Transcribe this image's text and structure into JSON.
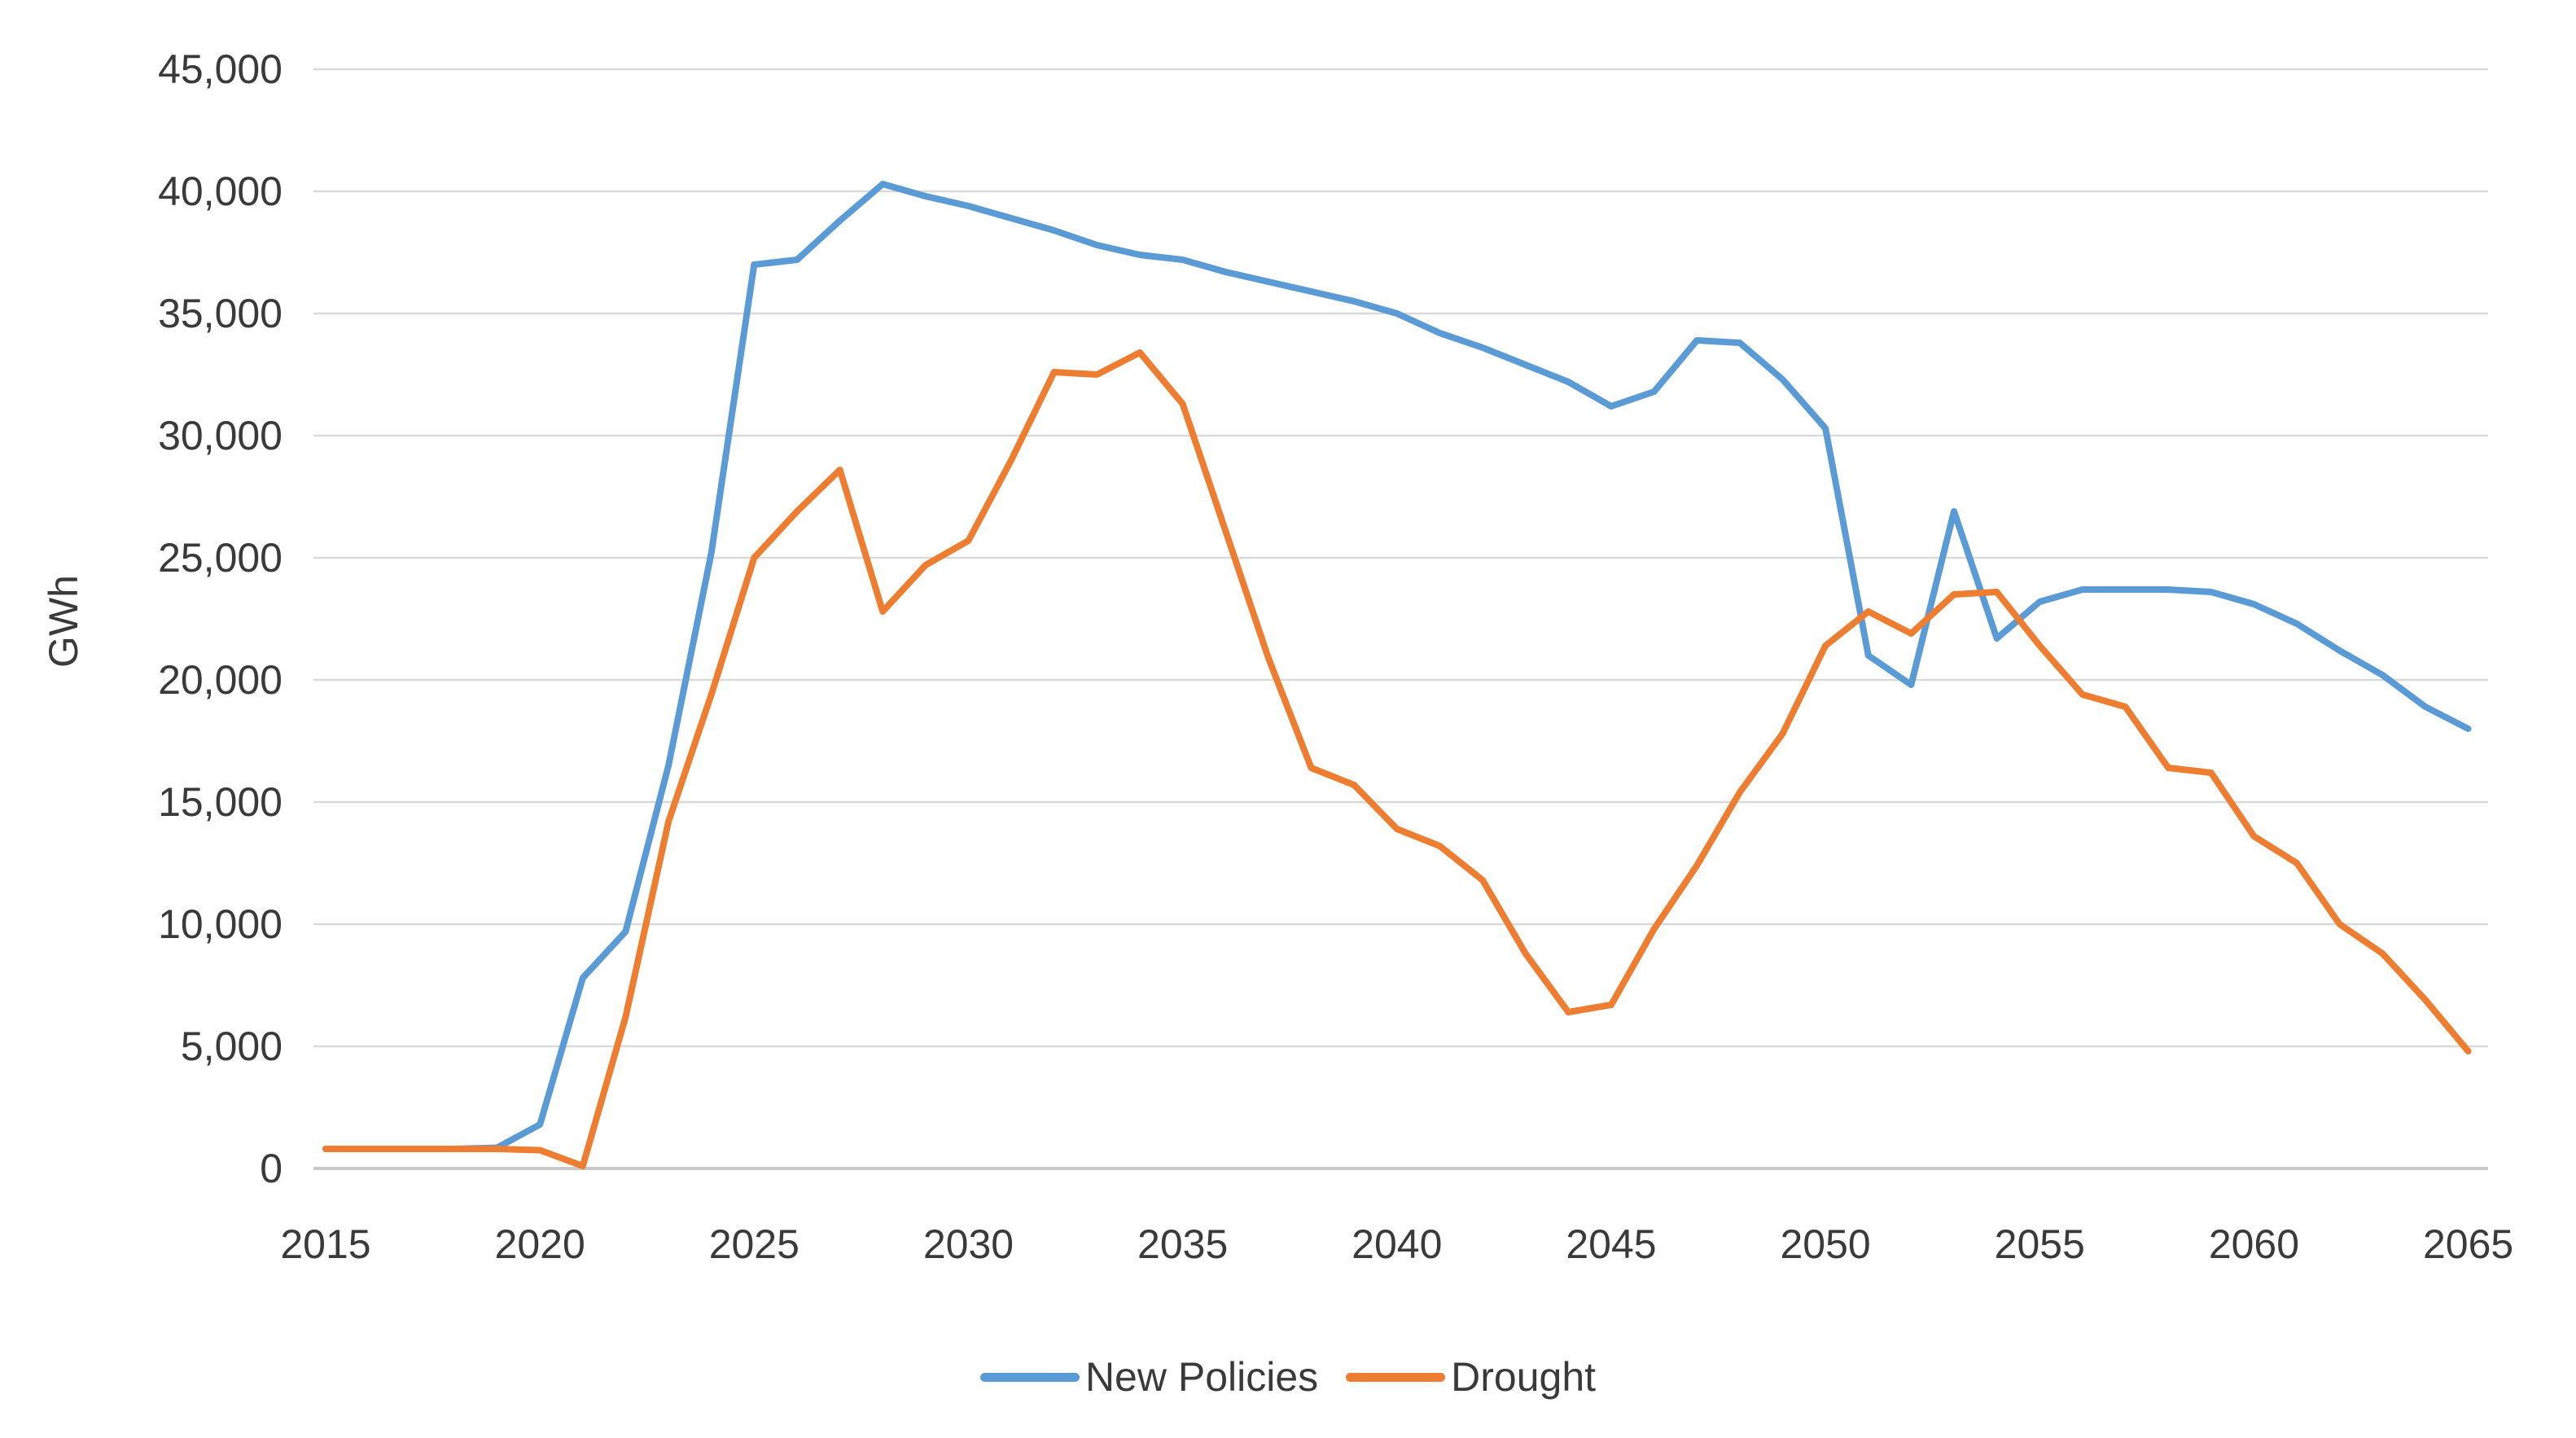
{
  "chart_data": {
    "type": "line",
    "title": "",
    "xlabel": "",
    "ylabel": "GWh",
    "grid": true,
    "legend_position": "bottom",
    "ylim": [
      0,
      45000
    ],
    "x": [
      2015,
      2016,
      2017,
      2018,
      2019,
      2020,
      2021,
      2022,
      2023,
      2024,
      2025,
      2026,
      2027,
      2028,
      2029,
      2030,
      2031,
      2032,
      2033,
      2034,
      2035,
      2036,
      2037,
      2038,
      2039,
      2040,
      2041,
      2042,
      2043,
      2044,
      2045,
      2046,
      2047,
      2048,
      2049,
      2050,
      2051,
      2052,
      2053,
      2054,
      2055,
      2056,
      2057,
      2058,
      2059,
      2060,
      2061,
      2062,
      2063,
      2064,
      2065
    ],
    "series": [
      {
        "name": "New Policies",
        "color": "#5B9BD5",
        "values": [
          800,
          800,
          800,
          800,
          850,
          1800,
          7800,
          9700,
          16500,
          25200,
          37000,
          37200,
          38800,
          40300,
          39800,
          39400,
          38900,
          38400,
          37800,
          37400,
          37200,
          36700,
          36300,
          35900,
          35500,
          35000,
          34200,
          33600,
          32900,
          32200,
          31200,
          31800,
          33900,
          33800,
          32300,
          30300,
          21000,
          19800,
          26900,
          21700,
          23200,
          23700,
          23700,
          23700,
          23600,
          23100,
          22300,
          21200,
          20200,
          18900,
          18000
        ]
      },
      {
        "name": "Drought",
        "color": "#ED7D31",
        "values": [
          800,
          800,
          800,
          800,
          800,
          750,
          100,
          6200,
          14200,
          19400,
          25000,
          26900,
          28600,
          22800,
          24700,
          25700,
          29000,
          32600,
          32500,
          33400,
          31300,
          26100,
          20900,
          16400,
          15700,
          13900,
          13200,
          11800,
          8800,
          6400,
          6700,
          9800,
          12400,
          15400,
          17800,
          21400,
          22800,
          21900,
          23500,
          23600,
          21400,
          19400,
          18900,
          16400,
          16200,
          13600,
          12500,
          10000,
          8800,
          6900,
          4800
        ]
      }
    ],
    "yticks": {
      "values": [
        0,
        5000,
        10000,
        15000,
        20000,
        25000,
        30000,
        35000,
        40000,
        45000
      ],
      "labels": [
        "0",
        "5,000",
        "10,000",
        "15,000",
        "20,000",
        "25,000",
        "30,000",
        "35,000",
        "40,000",
        "45,000"
      ]
    },
    "xticks": {
      "values": [
        2015,
        2020,
        2025,
        2030,
        2035,
        2040,
        2045,
        2050,
        2055,
        2060,
        2065
      ],
      "labels": [
        "2015",
        "2020",
        "2025",
        "2030",
        "2035",
        "2040",
        "2045",
        "2050",
        "2055",
        "2060",
        "2065"
      ]
    },
    "colors": {
      "gridline": "#D9D9D9",
      "axis_line": "#C9C9C9",
      "tick_text": "#3A3A3A"
    }
  },
  "legend": {
    "items": [
      {
        "label": "New Policies",
        "color": "#5B9BD5"
      },
      {
        "label": "Drought",
        "color": "#ED7D31"
      }
    ]
  }
}
